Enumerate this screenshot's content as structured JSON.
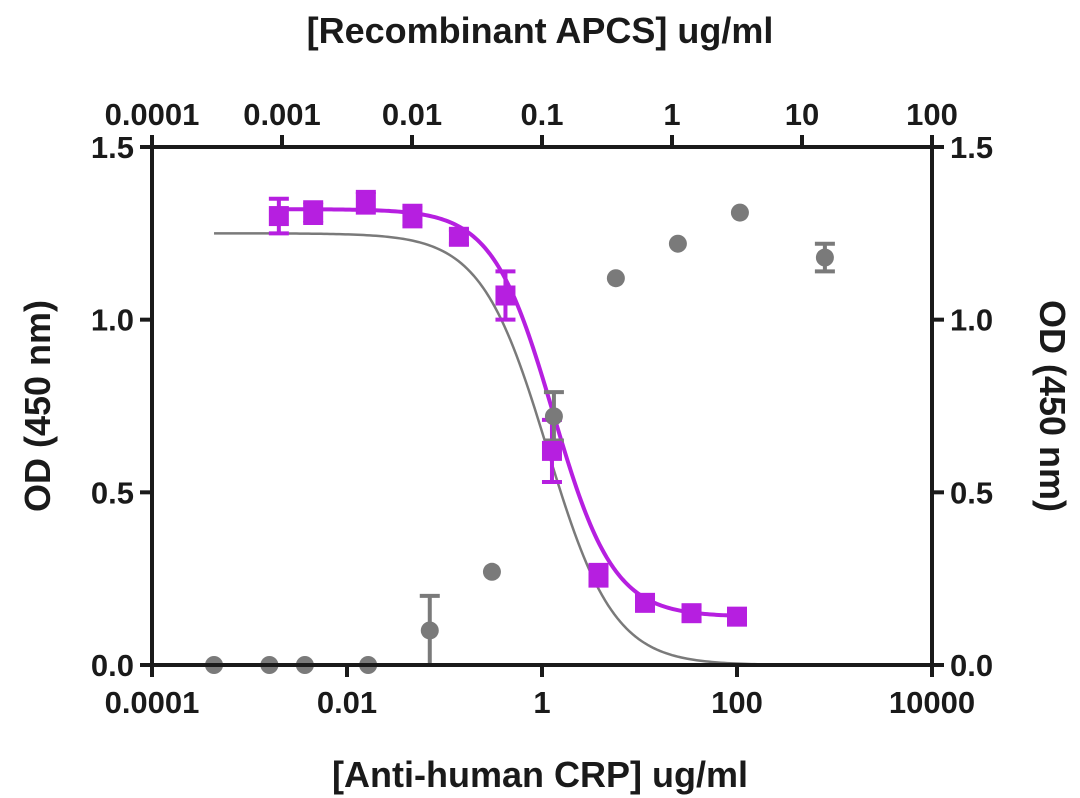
{
  "chart_data": {
    "type": "scatter",
    "axes": {
      "bottom": {
        "label": "[Anti-human CRP] ug/ml",
        "scale": "log",
        "range": [
          0.0001,
          10000
        ],
        "ticks": [
          0.0001,
          0.01,
          1,
          100,
          10000
        ],
        "tick_labels": [
          "0.0001",
          "0.01",
          "1",
          "100",
          "10000"
        ]
      },
      "top": {
        "label": "[Recombinant APCS] ug/ml",
        "scale": "log",
        "range": [
          0.0001,
          100
        ],
        "ticks": [
          0.0001,
          0.001,
          0.01,
          0.1,
          1,
          10,
          100
        ],
        "tick_labels": [
          "0.0001",
          "0.001",
          "0.01",
          "0.1",
          "1",
          "10",
          "100"
        ]
      },
      "left": {
        "label": "OD (450 nm)",
        "range": [
          0,
          1.5
        ],
        "ticks": [
          0,
          0.5,
          1,
          1.5
        ],
        "tick_labels": [
          "0.0",
          "0.5",
          "1.0",
          "1.5"
        ]
      },
      "right": {
        "label": "OD (450 nm)",
        "range": [
          0,
          1.5
        ],
        "ticks": [
          0,
          0.5,
          1,
          1.5
        ],
        "tick_labels": [
          "0.0",
          "0.5",
          "1.0",
          "1.5"
        ]
      }
    },
    "grid": false,
    "series": [
      {
        "x_axis": "bottom",
        "marker": "square",
        "color": "#b61fe0",
        "fit": "sigmoid",
        "fit_params": {
          "top": 1.32,
          "bottom": 0.14,
          "ec50": 1.3,
          "hill": 1.4
        },
        "fit_range": [
          0.002,
          100
        ],
        "x": [
          0.002,
          0.0045,
          0.0156,
          0.0469,
          0.1406,
          0.4219,
          1.2656,
          3.797,
          11.39,
          34.17,
          100
        ],
        "y": [
          1.3,
          1.31,
          1.34,
          1.3,
          1.24,
          1.07,
          0.62,
          0.26,
          0.18,
          0.15,
          0.14
        ],
        "err": [
          0.05,
          0.03,
          0.03,
          0.03,
          0.02,
          0.07,
          0.09,
          0.03,
          0.02,
          0.02,
          0.01
        ]
      },
      {
        "x_axis": "top",
        "marker": "circle",
        "color": "#7a7a7a",
        "fit": "sigmoid",
        "fit_params": {
          "bottom": 0.0,
          "top": 1.25,
          "ec50": 0.11,
          "hill": 1.7
        },
        "fit_range": [
          0.0003,
          15
        ],
        "x": [
          0.0003,
          0.0008,
          0.0015,
          0.0046,
          0.0137,
          0.0412,
          0.1235,
          0.37,
          1.11,
          3.33,
          15
        ],
        "y": [
          0.0,
          0.0,
          0.0,
          0.0,
          0.1,
          0.27,
          0.72,
          1.12,
          1.22,
          1.31,
          1.18
        ],
        "err": [
          0,
          0,
          0,
          0,
          0.1,
          0,
          0.07,
          0,
          0,
          0,
          0.04
        ]
      }
    ]
  }
}
